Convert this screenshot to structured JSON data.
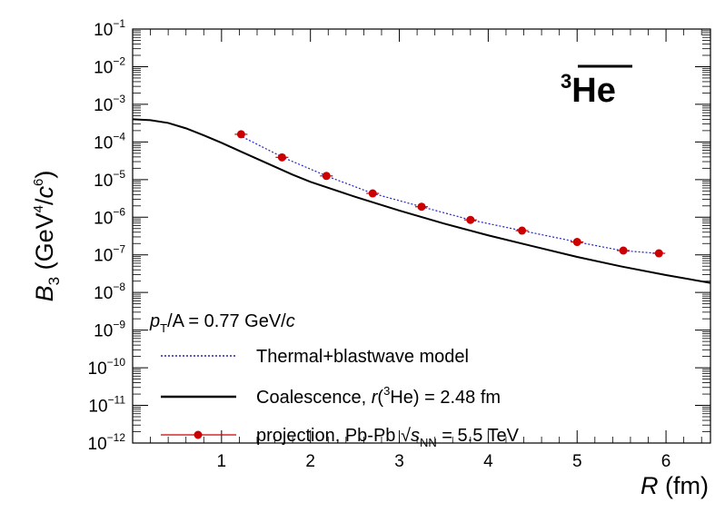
{
  "chart_data": {
    "type": "line",
    "xlim": [
      0,
      6.5
    ],
    "ylim_log10": [
      -12,
      -1
    ],
    "y_scale": "log",
    "x_ticks": [
      1,
      2,
      3,
      4,
      5,
      6
    ],
    "x_tick_labels": [
      "1",
      "2",
      "3",
      "4",
      "5",
      "6"
    ],
    "y_ticks_exp": [
      -12,
      -11,
      -10,
      -9,
      -8,
      -7,
      -6,
      -5,
      -4,
      -3,
      -2,
      -1
    ],
    "xlabel": {
      "main": "R",
      "unit": "(fm)"
    },
    "ylabel": {
      "main": "B",
      "sub": "3",
      "unit_open": "(GeV",
      "sup1": "4",
      "unit_mid": "/",
      "unit_c": "c",
      "sup2": "6",
      "unit_close": ")"
    },
    "annotation": {
      "sup": "3",
      "main": "He"
    },
    "pt_label": {
      "p": "p",
      "sub": "T",
      "rest": "/A = 0.77 GeV/",
      "c": "c"
    },
    "legend_placement": "bottom-left",
    "series": [
      {
        "name": "Thermal+blastwave model",
        "style": "dotted",
        "color": "#2222cc",
        "x": [
          1.2,
          1.7,
          2.2,
          2.7,
          3.25,
          3.8,
          4.4,
          5.0,
          5.5,
          5.9
        ],
        "y": [
          0.00015,
          3.8e-05,
          1.2e-05,
          4.3e-06,
          1.9e-06,
          8.5e-07,
          4.3e-07,
          2.2e-07,
          1.3e-07,
          1.1e-07
        ]
      },
      {
        "name": "Coalescence, r(³He) = 2.48 fm",
        "legend_parts": {
          "pre": "Coalescence, ",
          "r": "r",
          "open": "(",
          "sup": "3",
          "rest": "He) = 2.48 fm"
        },
        "style": "solid",
        "color": "#000000",
        "x": [
          0.0,
          0.2,
          0.4,
          0.6,
          0.8,
          1.0,
          1.2,
          1.5,
          1.8,
          2.0,
          2.5,
          3.0,
          3.5,
          4.0,
          4.5,
          5.0,
          5.5,
          6.0,
          6.5
        ],
        "y": [
          0.0004,
          0.00038,
          0.00032,
          0.00023,
          0.00015,
          9.5e-05,
          5.8e-05,
          2.8e-05,
          1.35e-05,
          8.7e-06,
          3.5e-06,
          1.5e-06,
          6.8e-07,
          3.3e-07,
          1.7e-07,
          8.8e-08,
          4.9e-08,
          2.9e-08,
          1.8e-08
        ]
      },
      {
        "name": "projection, Pb-Pb √sNN = 5.5 TeV",
        "legend_parts": {
          "pre": "projection, Pb-Pb ",
          "s": "s",
          "sub": "NN",
          "rest": " = 5.5 TeV"
        },
        "style": "markers",
        "color": "#cc0000",
        "x": [
          1.22,
          1.68,
          2.18,
          2.7,
          3.25,
          3.8,
          4.38,
          5.0,
          5.52,
          5.92
        ],
        "y": [
          0.00016,
          3.9e-05,
          1.25e-05,
          4.3e-06,
          1.9e-06,
          8.5e-07,
          4.4e-07,
          2.2e-07,
          1.3e-07,
          1.1e-07
        ]
      }
    ]
  }
}
